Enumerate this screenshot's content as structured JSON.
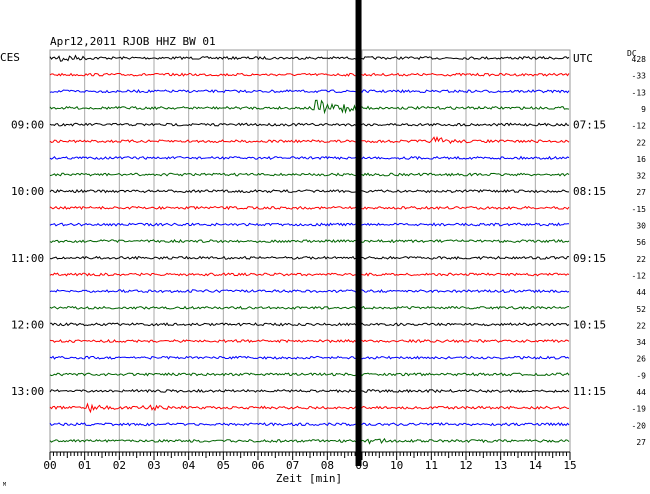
{
  "chart_data": {
    "type": "line",
    "title": "Apr12,2011  RJOB HHZ BW 01",
    "left_tz_label": "CES",
    "right_tz_label": "UTC",
    "dc_label": "DC",
    "xlabel": "Zeit [min]",
    "xlim": [
      0,
      15
    ],
    "x_ticks": [
      "00",
      "01",
      "02",
      "03",
      "04",
      "05",
      "06",
      "07",
      "08",
      "09",
      "10",
      "11",
      "12",
      "13",
      "14",
      "15"
    ],
    "trace_colors": [
      "#000000",
      "#ff0000",
      "#0000ff",
      "#006400"
    ],
    "left_time_labels": [
      {
        "row": 4,
        "text": "09:00"
      },
      {
        "row": 8,
        "text": "10:00"
      },
      {
        "row": 12,
        "text": "11:00"
      },
      {
        "row": 16,
        "text": "12:00"
      },
      {
        "row": 20,
        "text": "13:00"
      }
    ],
    "right_time_labels": [
      {
        "row": 0,
        "text": "UTC"
      },
      {
        "row": 4,
        "text": "07:15"
      },
      {
        "row": 8,
        "text": "08:15"
      },
      {
        "row": 12,
        "text": "09:15"
      },
      {
        "row": 16,
        "text": "10:15"
      },
      {
        "row": 20,
        "text": "11:15"
      }
    ],
    "dc_offsets": [
      "428",
      "-33",
      "-13",
      "9",
      "-12",
      "22",
      "16",
      "32",
      "27",
      "-15",
      "30",
      "56",
      "22",
      "-12",
      "44",
      "52",
      "22",
      "34",
      "26",
      "-9",
      "44",
      "-19",
      "-20",
      "27"
    ],
    "bottom_mark": "M",
    "events": [
      {
        "row": 0,
        "minute": 0.3,
        "amplitude": 5
      },
      {
        "row": 3,
        "minute": 7.7,
        "amplitude": 9
      },
      {
        "row": 3,
        "minute": 8.3,
        "amplitude": 6
      },
      {
        "row": 5,
        "minute": 11.1,
        "amplitude": 4
      },
      {
        "row": 21,
        "minute": 1.1,
        "amplitude": 4
      },
      {
        "row": 21,
        "minute": 2.8,
        "amplitude": 3
      },
      {
        "row": 23,
        "minute": 9.3,
        "amplitude": 3
      }
    ],
    "glitch_minute": 8.9
  }
}
